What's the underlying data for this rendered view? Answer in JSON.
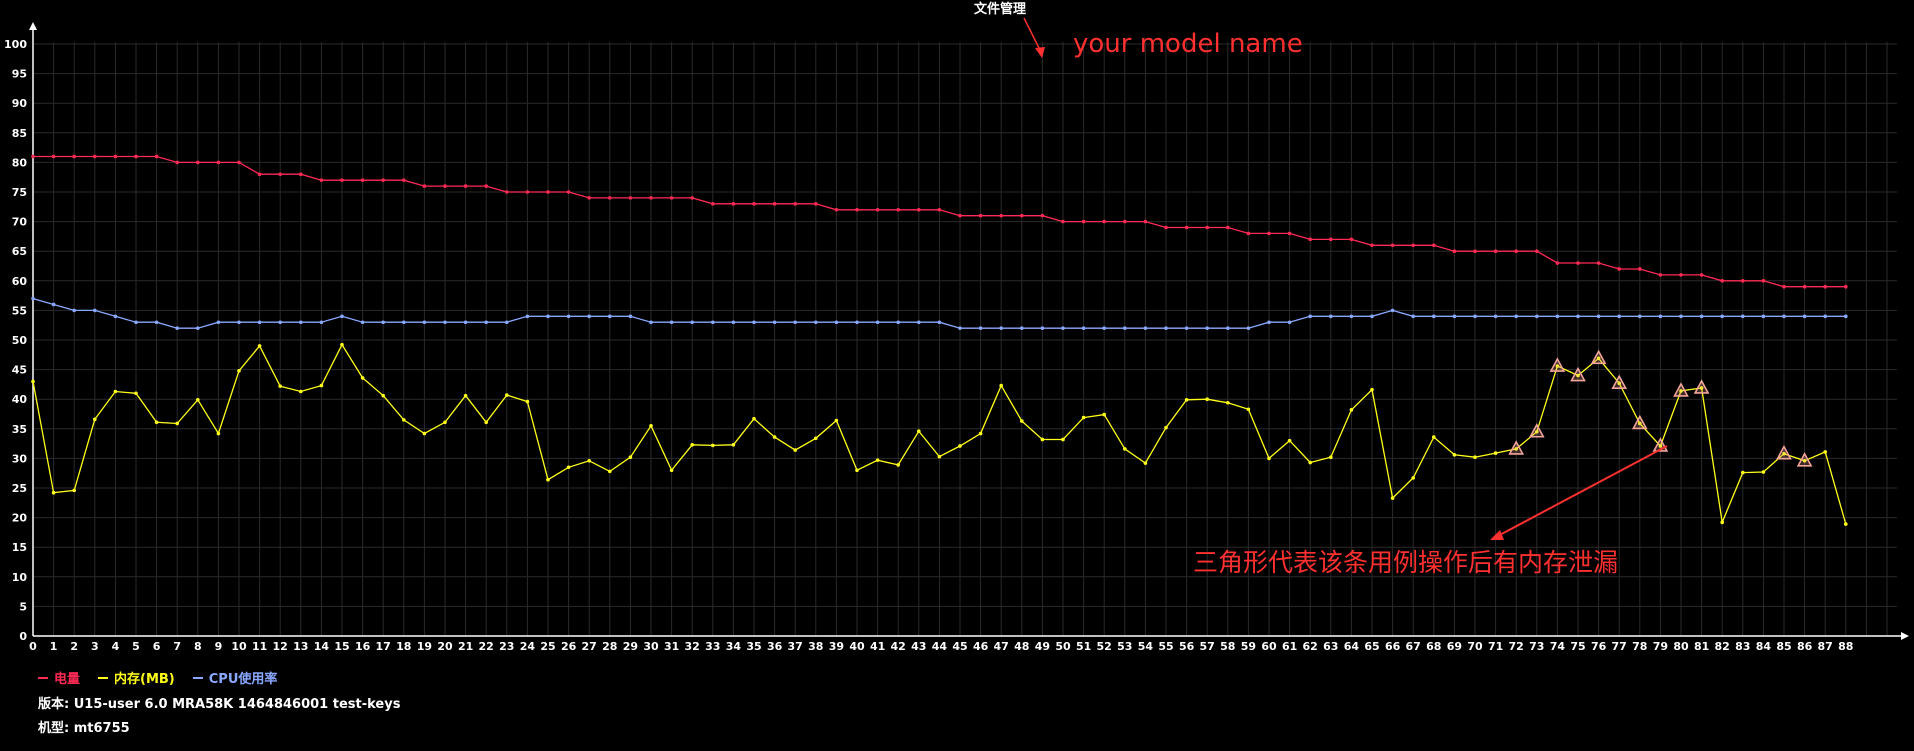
{
  "chart_data": {
    "type": "line",
    "title": "文件管理",
    "ylim": [
      0,
      100
    ],
    "yticks": [
      0,
      5,
      10,
      15,
      20,
      25,
      30,
      35,
      40,
      45,
      50,
      55,
      60,
      65,
      70,
      75,
      80,
      85,
      90,
      95,
      100
    ],
    "x": [
      0,
      1,
      2,
      3,
      4,
      5,
      6,
      7,
      8,
      9,
      10,
      11,
      12,
      13,
      14,
      15,
      16,
      17,
      18,
      19,
      20,
      21,
      22,
      23,
      24,
      25,
      26,
      27,
      28,
      29,
      30,
      31,
      32,
      33,
      34,
      35,
      36,
      37,
      38,
      39,
      40,
      41,
      42,
      43,
      44,
      45,
      46,
      47,
      48,
      49,
      50,
      51,
      52,
      53,
      54,
      55,
      56,
      57,
      58,
      59,
      60,
      61,
      62,
      63,
      64,
      65,
      66,
      67,
      68,
      69,
      70,
      71,
      72,
      73,
      74,
      75,
      76,
      77,
      78,
      79,
      80,
      81,
      82,
      83,
      84,
      85,
      86,
      87,
      88
    ],
    "series": [
      {
        "name": "电量",
        "color": "#ff2a55",
        "values": [
          81,
          81,
          81,
          81,
          81,
          81,
          81,
          80,
          80,
          80,
          80,
          78,
          78,
          78,
          77,
          77,
          77,
          77,
          77,
          76,
          76,
          76,
          76,
          75,
          75,
          75,
          75,
          74,
          74,
          74,
          74,
          74,
          74,
          73,
          73,
          73,
          73,
          73,
          73,
          72,
          72,
          72,
          72,
          72,
          72,
          71,
          71,
          71,
          71,
          71,
          70,
          70,
          70,
          70,
          70,
          69,
          69,
          69,
          69,
          68,
          68,
          68,
          67,
          67,
          67,
          66,
          66,
          66,
          66,
          65,
          65,
          65,
          65,
          65,
          63,
          63,
          63,
          62,
          62,
          61,
          61,
          61,
          60,
          60,
          60,
          59,
          59,
          59,
          59
        ]
      },
      {
        "name": "内存(MB)",
        "color": "#ffff1a",
        "values": [
          43,
          24.2,
          24.6,
          36.6,
          41.3,
          41,
          36.1,
          35.9,
          39.9,
          34.2,
          44.8,
          49,
          42.2,
          41.3,
          42.3,
          49.2,
          43.6,
          40.6,
          36.5,
          34.2,
          36.1,
          40.6,
          36.1,
          40.7,
          39.6,
          26.4,
          28.5,
          29.6,
          27.8,
          30.2,
          35.5,
          28,
          32.3,
          32.2,
          32.3,
          36.7,
          33.6,
          31.4,
          33.4,
          36.4,
          28,
          29.7,
          28.9,
          34.6,
          30.3,
          32.1,
          34.2,
          42.3,
          36.3,
          33.2,
          33.2,
          36.9,
          37.4,
          31.6,
          29.2,
          35.2,
          39.9,
          40,
          39.4,
          38.3,
          30,
          33,
          29.3,
          30.2,
          38.2,
          41.6,
          23.3,
          26.7,
          33.6,
          30.6,
          30.2,
          30.9,
          31.6,
          34.5,
          45.6,
          44,
          46.9,
          42.7,
          35.9,
          32.1,
          41.4,
          41.9,
          19.2,
          27.6,
          27.7,
          30.8,
          29.6,
          31.1,
          18.9
        ]
      },
      {
        "name": "CPU使用率",
        "color": "#8aa8ff",
        "values": [
          57,
          56,
          55,
          55,
          54,
          53,
          53,
          52,
          52,
          53,
          53,
          53,
          53,
          53,
          53,
          54,
          53,
          53,
          53,
          53,
          53,
          53,
          53,
          53,
          54,
          54,
          54,
          54,
          54,
          54,
          53,
          53,
          53,
          53,
          53,
          53,
          53,
          53,
          53,
          53,
          53,
          53,
          53,
          53,
          53,
          52,
          52,
          52,
          52,
          52,
          52,
          52,
          52,
          52,
          52,
          52,
          52,
          52,
          52,
          52,
          53,
          53,
          54,
          54,
          54,
          54,
          55,
          54,
          54,
          54,
          54,
          54,
          54,
          54,
          54,
          54,
          54,
          54,
          54,
          54,
          54,
          54,
          54,
          54,
          54,
          54,
          54,
          54,
          54
        ]
      }
    ],
    "leak_markers_x": [
      72,
      73,
      74,
      75,
      76,
      77,
      78,
      79,
      80,
      81,
      85,
      86
    ],
    "leak_marker_color": "#f4a59a",
    "annotations": {
      "model_note": "your model name",
      "triangle_note": "三角形代表该条用例操作后有内存泄漏",
      "color": "#ff3030"
    }
  },
  "footer": {
    "version_label": "版本:",
    "version_value": "U15-user 6.0 MRA58K 1464846001 test-keys",
    "model_label": "机型:",
    "model_value": "mt6755"
  }
}
